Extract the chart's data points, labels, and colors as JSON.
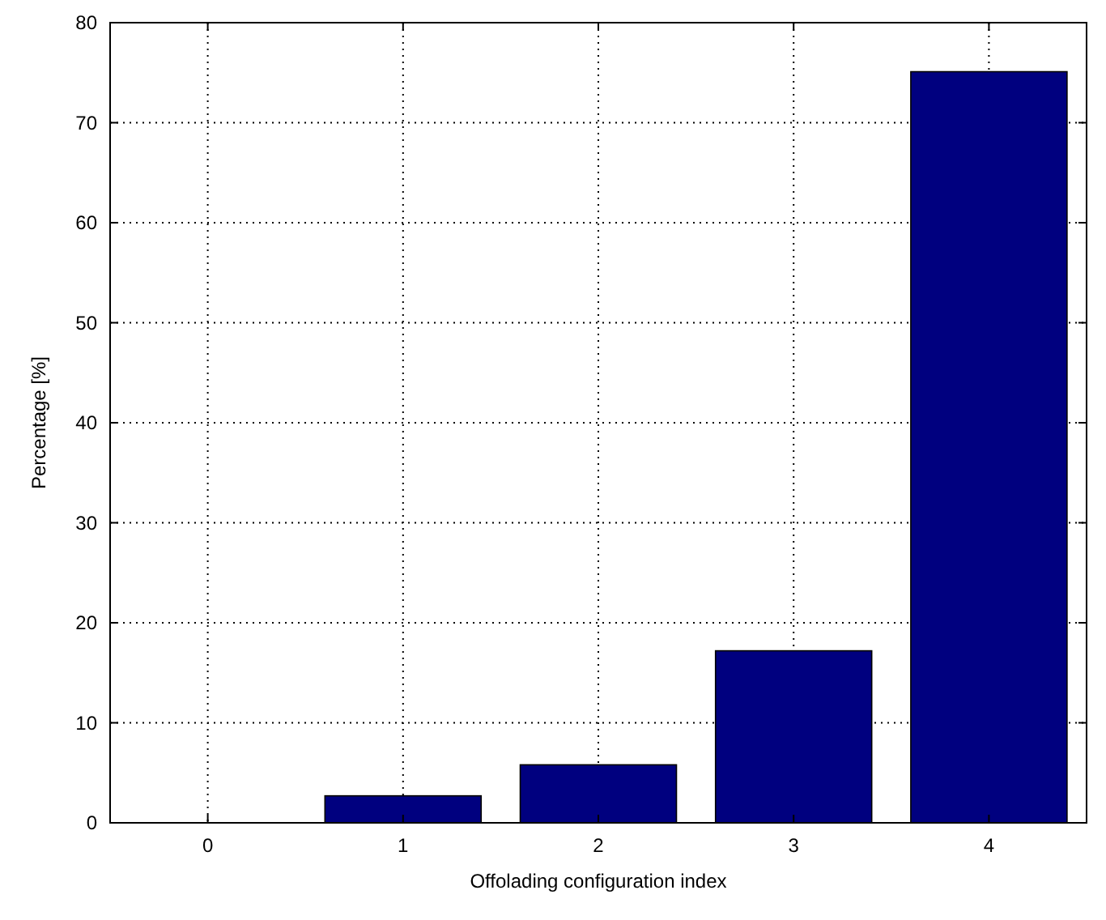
{
  "chart_data": {
    "type": "bar",
    "xlabel": "Offolading configuration index",
    "ylabel": "Percentage [%]",
    "categories": [
      "0",
      "1",
      "2",
      "3",
      "4"
    ],
    "values": [
      0,
      2.7,
      5.8,
      17.2,
      75.1
    ],
    "color": "#00007f",
    "ylim": [
      0,
      80
    ],
    "yticks": [
      0,
      10,
      20,
      30,
      40,
      50,
      60,
      70,
      80
    ],
    "grid": true
  }
}
